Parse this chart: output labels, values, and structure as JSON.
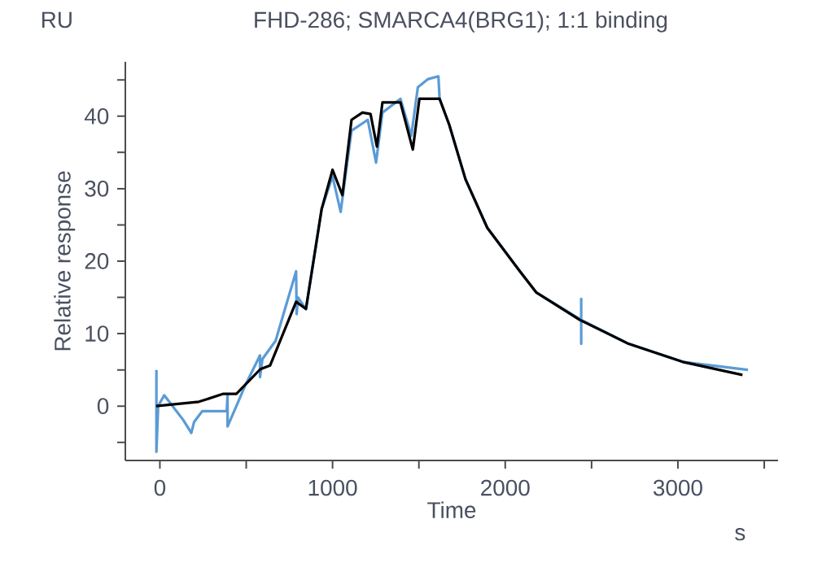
{
  "chart_data": {
    "type": "line",
    "title": "FHD-286; SMARCA4(BRG1); 1:1 binding",
    "xlabel": "Time",
    "ylabel": "Relative response",
    "annotations": [
      "RU",
      "s"
    ],
    "xlim": [
      -200,
      3580
    ],
    "ylim": [
      -7.5,
      47.5
    ],
    "xticks": [
      0,
      {
        "value": 500,
        "label": null
      },
      1000,
      {
        "value": 1500,
        "label": null
      },
      2000,
      {
        "value": 2500,
        "label": null
      },
      3000,
      {
        "value": 3500,
        "label": null
      }
    ],
    "yticks": [
      {
        "value": -5,
        "label": null
      },
      0,
      {
        "value": 5,
        "label": null
      },
      10,
      {
        "value": 15,
        "label": null
      },
      20,
      {
        "value": 25,
        "label": null
      },
      30,
      {
        "value": 35,
        "label": null
      },
      40,
      {
        "value": 45,
        "label": null
      }
    ],
    "series": [
      {
        "color": "#5b9bd5",
        "x": [
          -20,
          -20,
          -10,
          25,
          135,
          182,
          198,
          245,
          387,
          392,
          392,
          443,
          497,
          580,
          580,
          594,
          670,
          789,
          792,
          800,
          846,
          937,
          1000,
          1047,
          1110,
          1204,
          1252,
          1289,
          1393,
          1456,
          1494,
          1551,
          1613,
          1620,
          1676,
          1770,
          1896,
          2085,
          2179,
          2440,
          2440,
          2440,
          2440,
          2714,
          3028,
          3406
        ],
        "values": [
          5,
          -6.3,
          0,
          1.5,
          -1.9,
          -3.7,
          -2.2,
          -0.7,
          -0.7,
          1.5,
          -2.8,
          0,
          3,
          7,
          4,
          6.5,
          9,
          18.6,
          12.7,
          15,
          13.4,
          27.2,
          31.7,
          26.8,
          38,
          39.5,
          33.6,
          40.5,
          42.4,
          37.3,
          44,
          45.1,
          45.5,
          42.4,
          38.8,
          31.3,
          24.6,
          18.6,
          15.7,
          11.9,
          14.8,
          8.6,
          11.9,
          8.6,
          6.1,
          5.0
        ]
      },
      {
        "color": "#000000",
        "x": [
          -22,
          226,
          368,
          443,
          582,
          638,
          789,
          846,
          937,
          1000,
          1057,
          1110,
          1173,
          1220,
          1257,
          1289,
          1393,
          1465,
          1503,
          1620,
          1676,
          1770,
          1896,
          2085,
          2179,
          2431,
          2714,
          3028,
          3374
        ],
        "values": [
          0,
          0.6,
          1.7,
          1.7,
          5.1,
          5.6,
          14.4,
          13.4,
          27.2,
          32.6,
          29.1,
          39.5,
          40.5,
          40.3,
          35.8,
          41.9,
          41.9,
          35.4,
          42.4,
          42.4,
          38.8,
          31.3,
          24.6,
          18.6,
          15.7,
          11.9,
          8.6,
          6.1,
          4.3
        ]
      }
    ]
  }
}
